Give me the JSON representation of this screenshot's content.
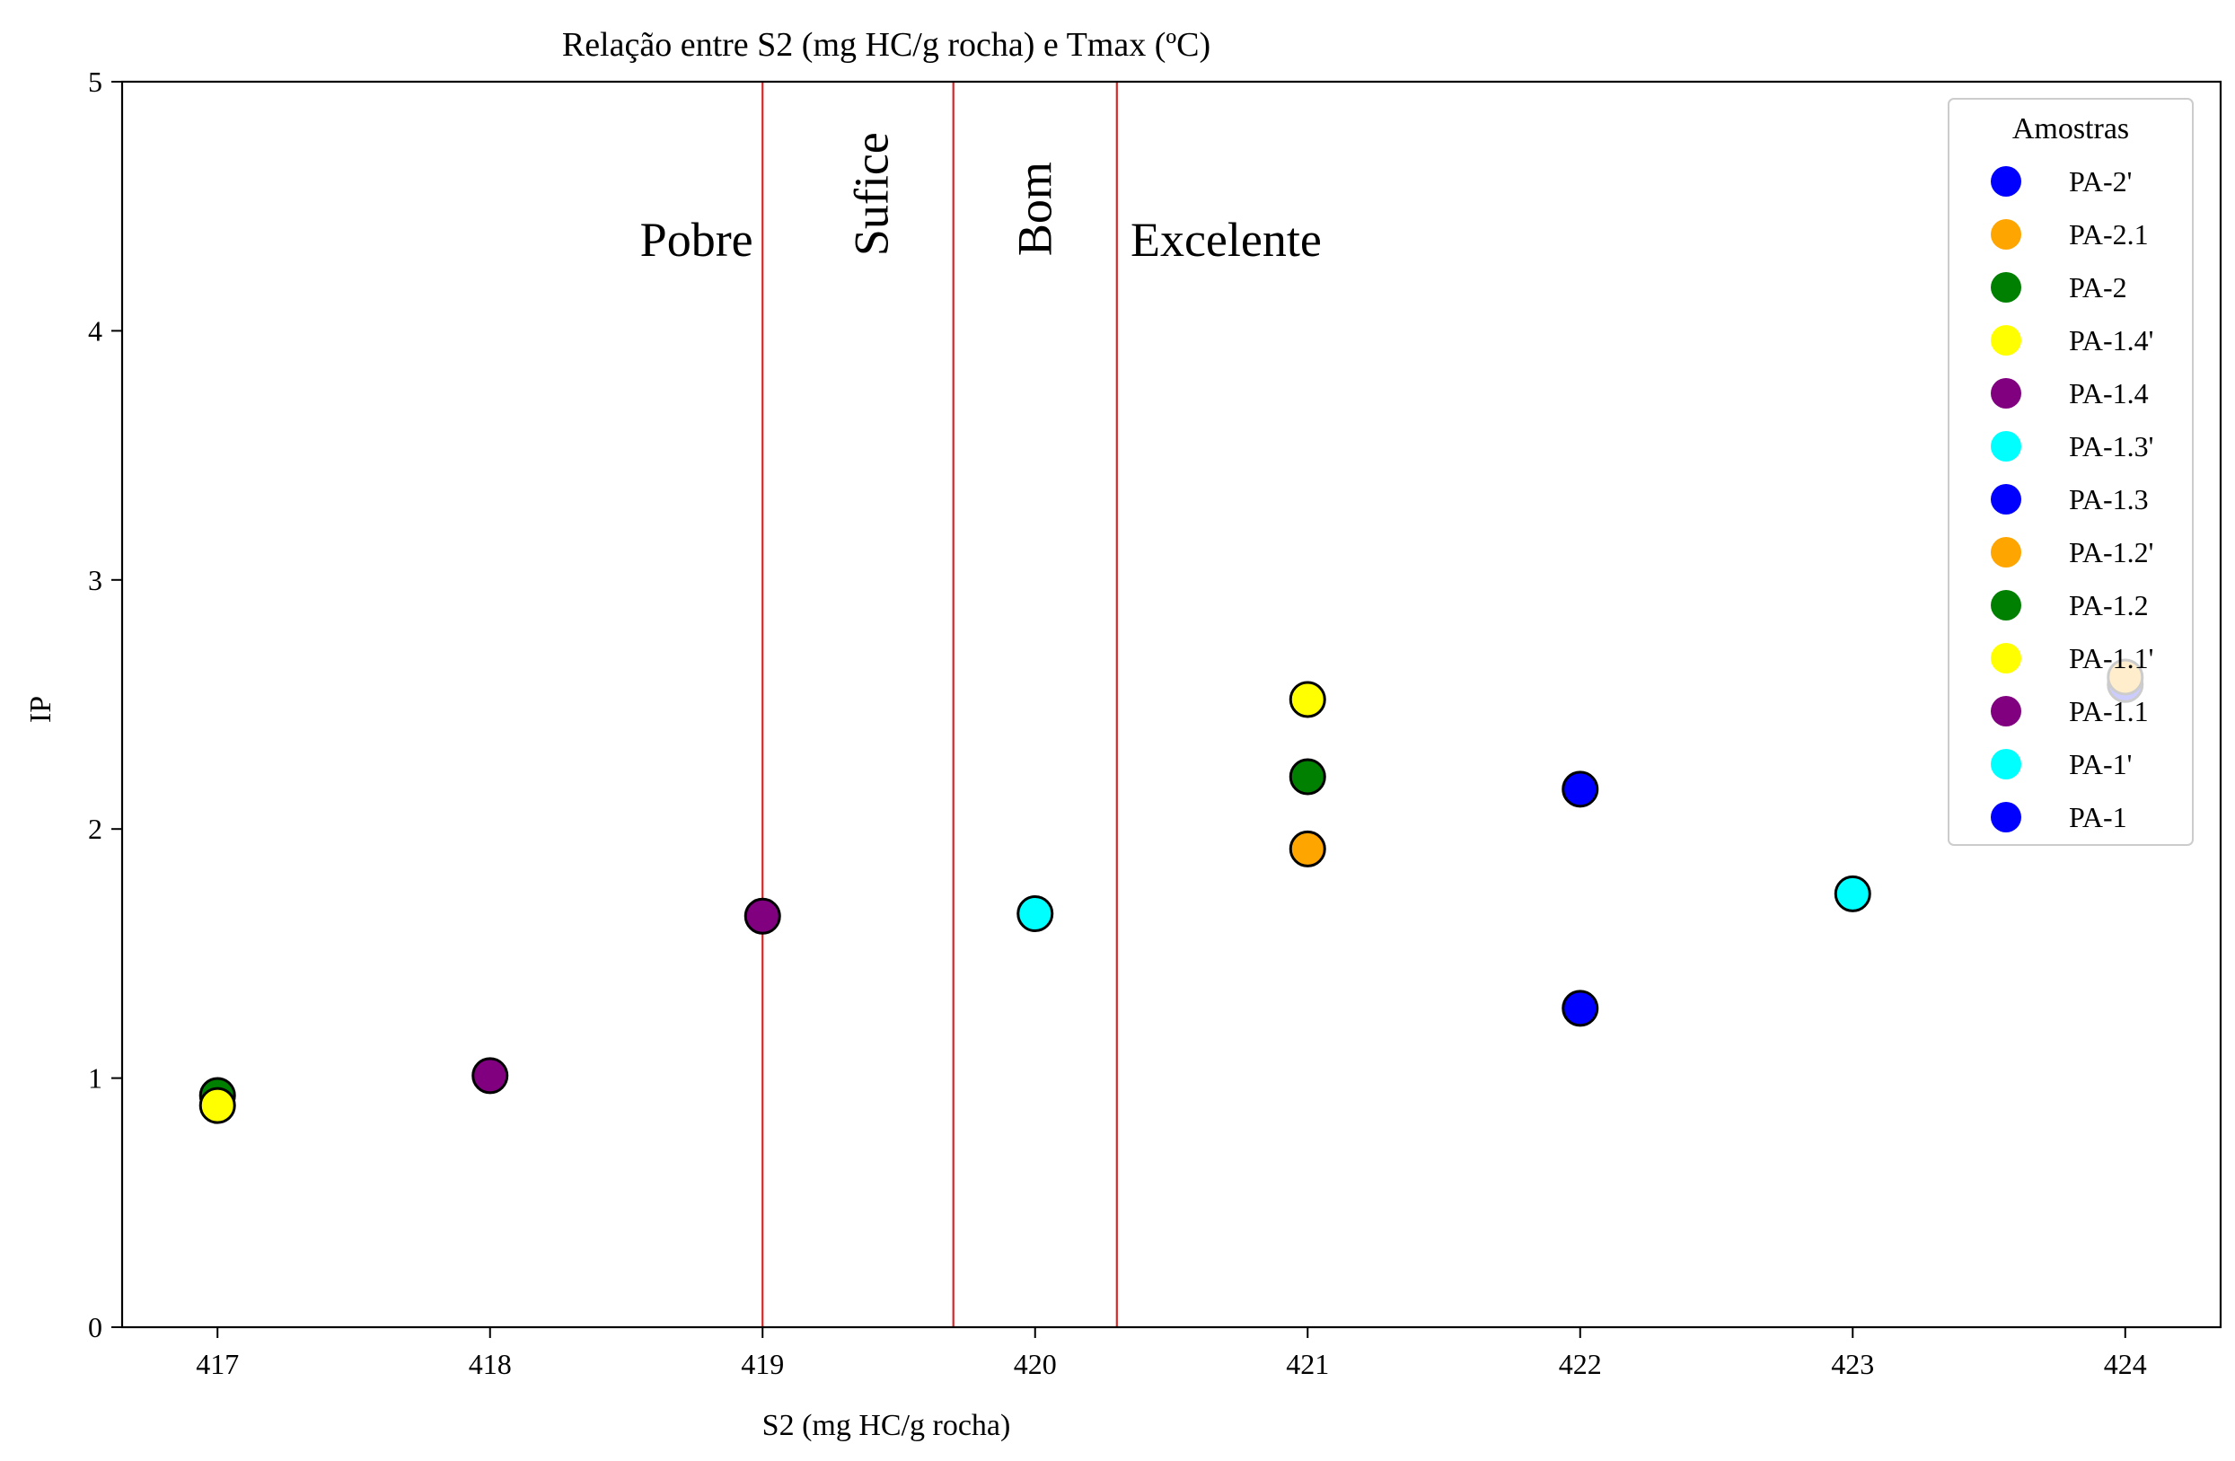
{
  "chart_data": {
    "type": "scatter",
    "title": "Relação entre S2 (mg HC/g rocha) e Tmax (ºC)",
    "xlabel": "S2 (mg HC/g rocha)",
    "ylabel": "IP",
    "xlim": [
      416.65,
      424.35
    ],
    "ylim": [
      0,
      5
    ],
    "xticks": [
      417,
      418,
      419,
      420,
      421,
      422,
      423,
      424
    ],
    "yticks": [
      0,
      1,
      2,
      3,
      4,
      5
    ],
    "grid": false,
    "thresholds": [
      419,
      419.7,
      420.3
    ],
    "threshold_color": "#d62728",
    "zones": [
      {
        "label": "Pobre",
        "x": 418.55,
        "y": 4.3,
        "rotated": false
      },
      {
        "label": "Sufice",
        "x": 419.4,
        "y": 4.3,
        "rotated": true
      },
      {
        "label": "Bom",
        "x": 420.0,
        "y": 4.3,
        "rotated": true
      },
      {
        "label": "Excelente",
        "x": 420.35,
        "y": 4.3,
        "rotated": false
      }
    ],
    "legend": {
      "title": "Amostras",
      "placement": "top-right"
    },
    "series": [
      {
        "name": "PA-2'",
        "color": "#0000ff",
        "points": [
          [
            424,
            2.58
          ]
        ]
      },
      {
        "name": "PA-2.1",
        "color": "#ffa500",
        "points": [
          [
            421,
            1.92
          ]
        ]
      },
      {
        "name": "PA-2",
        "color": "#008000",
        "points": [
          [
            421,
            2.21
          ]
        ]
      },
      {
        "name": "PA-1.4'",
        "color": "#ffff00",
        "points": [
          [
            421,
            2.52
          ]
        ]
      },
      {
        "name": "PA-1.4",
        "color": "#800080",
        "points": [
          [
            419,
            1.65
          ]
        ]
      },
      {
        "name": "PA-1.3'",
        "color": "#00ffff",
        "points": [
          [
            423,
            1.74
          ]
        ]
      },
      {
        "name": "PA-1.3",
        "color": "#0000ff",
        "points": [
          [
            422,
            2.16
          ]
        ]
      },
      {
        "name": "PA-1.2'",
        "color": "#ffa500",
        "points": [
          [
            424,
            2.61
          ]
        ]
      },
      {
        "name": "PA-1.2",
        "color": "#008000",
        "points": [
          [
            417,
            0.93
          ]
        ]
      },
      {
        "name": "PA-1.1'",
        "color": "#ffff00",
        "points": [
          [
            417,
            0.89
          ]
        ]
      },
      {
        "name": "PA-1.1",
        "color": "#800080",
        "points": [
          [
            418,
            1.01
          ]
        ]
      },
      {
        "name": "PA-1'",
        "color": "#00ffff",
        "points": [
          [
            420,
            1.66
          ]
        ]
      },
      {
        "name": "PA-1",
        "color": "#0000ff",
        "points": [
          [
            422,
            1.28
          ]
        ]
      }
    ]
  }
}
